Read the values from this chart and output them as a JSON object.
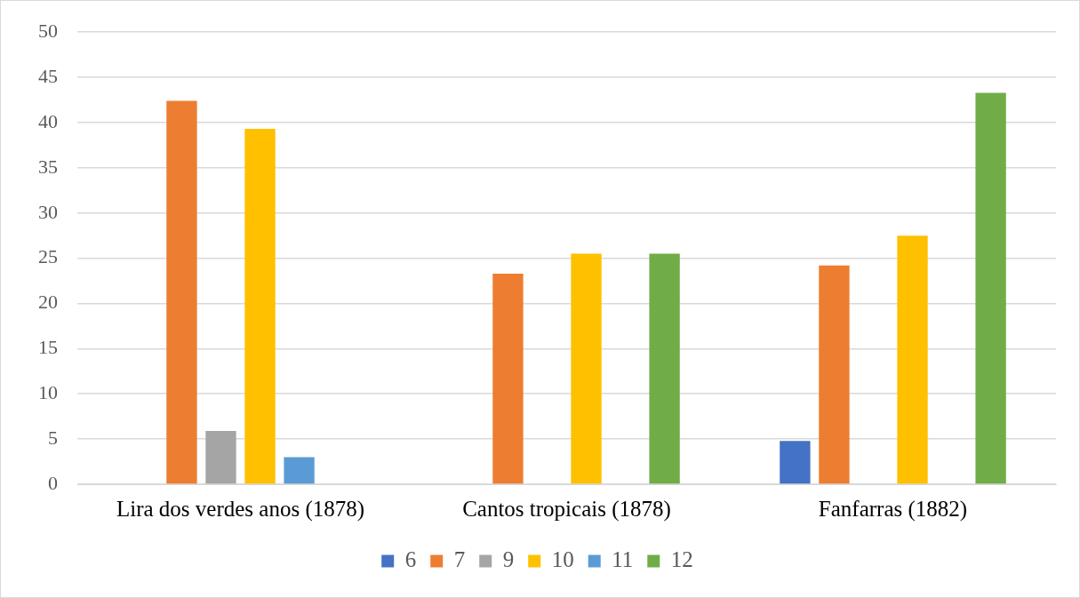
{
  "chart_data": {
    "type": "bar",
    "categories": [
      "Lira dos verdes anos (1878)",
      "Cantos tropicais (1878)",
      "Fanfarras (1882)"
    ],
    "series": [
      {
        "name": "6",
        "color": "#4472c4",
        "values": [
          null,
          null,
          4.8
        ]
      },
      {
        "name": "7",
        "color": "#ed7d31",
        "values": [
          42.4,
          23.3,
          24.2
        ]
      },
      {
        "name": "9",
        "color": "#a5a5a5",
        "values": [
          5.9,
          null,
          null
        ]
      },
      {
        "name": "10",
        "color": "#ffc000",
        "values": [
          39.3,
          25.5,
          27.5
        ]
      },
      {
        "name": "11",
        "color": "#5b9bd5",
        "values": [
          3.0,
          null,
          null
        ]
      },
      {
        "name": "12",
        "color": "#70ad47",
        "values": [
          null,
          25.5,
          43.3
        ]
      }
    ],
    "ylim": [
      0,
      50
    ],
    "yticks": [
      0,
      5,
      10,
      15,
      20,
      25,
      30,
      35,
      40,
      45,
      50
    ],
    "grid": "y",
    "legend": "bottom"
  }
}
